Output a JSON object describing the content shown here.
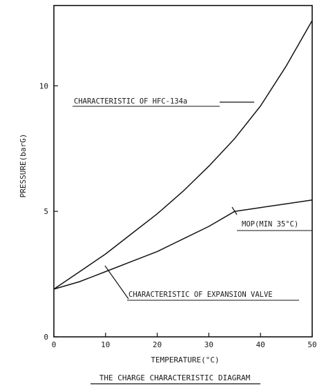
{
  "chart_data": {
    "type": "line",
    "title": "THE CHARGE CHARACTERISTIC DIAGRAM",
    "xlabel": "TEMPERATURE(°C)",
    "ylabel": "PRESSURE(barG)",
    "xlim": [
      0,
      50
    ],
    "ylim": [
      0,
      13.2
    ],
    "x_ticks": [
      0,
      10,
      20,
      30,
      40,
      50
    ],
    "y_ticks": [
      0,
      5,
      10
    ],
    "grid": false,
    "series": [
      {
        "name": "CHARACTERISTIC OF HFC-134a",
        "x": [
          0,
          5,
          10,
          15,
          20,
          25,
          30,
          35,
          40,
          45,
          50
        ],
        "y": [
          1.9,
          2.6,
          3.3,
          4.1,
          4.9,
          5.8,
          6.8,
          7.9,
          9.2,
          10.8,
          12.6
        ]
      },
      {
        "name": "CHARACTERISTIC OF EXPANSION VALVE",
        "x": [
          0,
          5,
          10,
          15,
          20,
          25,
          30,
          35,
          40,
          45,
          50
        ],
        "y": [
          1.9,
          2.2,
          2.6,
          3.0,
          3.4,
          3.9,
          4.4,
          5.0,
          5.15,
          5.3,
          5.45
        ]
      }
    ],
    "annotations": [
      {
        "text": "CHARACTERISTIC OF HFC-134a",
        "points_to_series": 0
      },
      {
        "text": "MOP(MIN 35°C)",
        "points_to_series": 1
      },
      {
        "text": "CHARACTERISTIC OF EXPANSION VALVE",
        "points_to_series": 1
      }
    ]
  }
}
